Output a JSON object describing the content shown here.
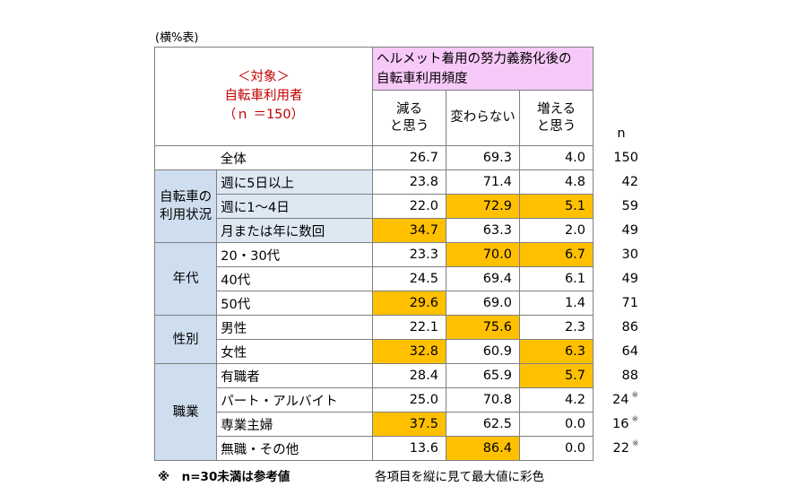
{
  "caption": "(横%表)",
  "header": {
    "target_line1": "＜対象＞",
    "target_line2": "自転車利用者",
    "target_line3": "（ｎ ＝150）",
    "question_line1": "ヘルメット着用の努力義務化後の",
    "question_line2": "自転車利用頻度",
    "col1_line1": "減る",
    "col1_line2": "と思う",
    "col2": "変わらない",
    "col3_line1": "増える",
    "col3_line2": "と思う",
    "n_label": "n"
  },
  "total": {
    "label": "全体",
    "v1": "26.7",
    "v2": "69.3",
    "v3": "4.0",
    "n": "150"
  },
  "groups": {
    "usage": {
      "line1": "自転車の",
      "line2": "利用状況"
    },
    "age": {
      "label": "年代"
    },
    "gender": {
      "label": "性別"
    },
    "job": {
      "label": "職業"
    }
  },
  "rows": [
    {
      "label": "週に5日以上",
      "v1": "23.8",
      "v2": "71.4",
      "v3": "4.8",
      "n": "42",
      "mark": ""
    },
    {
      "label": "週に1～4日",
      "v1": "22.0",
      "v2": "72.9",
      "v3": "5.1",
      "n": "59",
      "mark": ""
    },
    {
      "label": "月または年に数回",
      "v1": "34.7",
      "v2": "63.3",
      "v3": "2.0",
      "n": "49",
      "mark": ""
    },
    {
      "label": "20・30代",
      "v1": "23.3",
      "v2": "70.0",
      "v3": "6.7",
      "n": "30",
      "mark": ""
    },
    {
      "label": "40代",
      "v1": "24.5",
      "v2": "69.4",
      "v3": "6.1",
      "n": "49",
      "mark": ""
    },
    {
      "label": "50代",
      "v1": "29.6",
      "v2": "69.0",
      "v3": "1.4",
      "n": "71",
      "mark": ""
    },
    {
      "label": "男性",
      "v1": "22.1",
      "v2": "75.6",
      "v3": "2.3",
      "n": "86",
      "mark": ""
    },
    {
      "label": "女性",
      "v1": "32.8",
      "v2": "60.9",
      "v3": "6.3",
      "n": "64",
      "mark": ""
    },
    {
      "label": "有職者",
      "v1": "28.4",
      "v2": "65.9",
      "v3": "5.7",
      "n": "88",
      "mark": ""
    },
    {
      "label": "パート・アルバイト",
      "v1": "25.0",
      "v2": "70.8",
      "v3": "4.2",
      "n": "24",
      "mark": "※"
    },
    {
      "label": "専業主婦",
      "v1": "37.5",
      "v2": "62.5",
      "v3": "0.0",
      "n": "16",
      "mark": "※"
    },
    {
      "label": "無職・その他",
      "v1": "13.6",
      "v2": "86.4",
      "v3": "0.0",
      "n": "22",
      "mark": "※"
    }
  ],
  "highlight_color": "#ffc000",
  "notes": {
    "left": "※　n=30未満は参考値",
    "right": "各項目を縦に見て最大値に彩色"
  }
}
